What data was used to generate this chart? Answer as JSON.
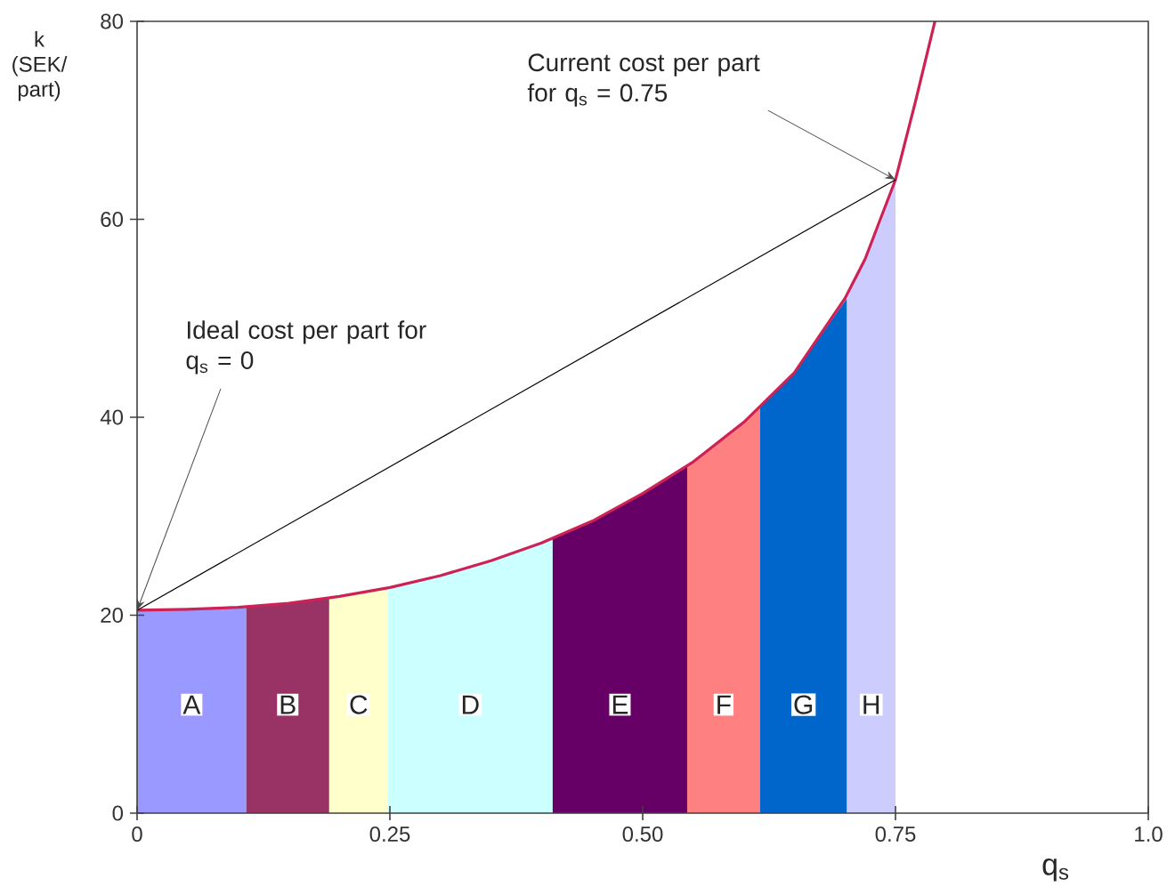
{
  "chart_data": {
    "type": "area",
    "xlabel": "q$_{s}$",
    "ylabel": "k (SEK/ part)",
    "xlim": [
      0,
      1.0
    ],
    "ylim": [
      0,
      80
    ],
    "xticks": [
      0,
      0.25,
      {
        "value": 0.5,
        "label": "0.50"
      },
      0.75,
      {
        "value": 1.0,
        "label": "1.0"
      }
    ],
    "yticks": [
      0,
      20,
      40,
      60,
      80
    ],
    "annotations": [
      {
        "text": "Ideal cost per part for q$_{s}$ = 0",
        "x": 0,
        "y": 20.5
      },
      {
        "text": "Current cost per part for q$_{s}$ = 0.75",
        "x": 0.75,
        "y": 64
      }
    ],
    "series": [
      {
        "name": "A",
        "color": "#9999ff",
        "x": [
          0,
          0.108
        ],
        "values": [
          20.5,
          20.8
        ]
      },
      {
        "name": "B",
        "color": "#993366",
        "x": [
          0.108,
          0.19
        ],
        "values": [
          20.8,
          21.7
        ]
      },
      {
        "name": "C",
        "color": "#ffffcc",
        "x": [
          0.19,
          0.248
        ],
        "values": [
          21.7,
          22.8
        ]
      },
      {
        "name": "D",
        "color": "#ccffff",
        "x": [
          0.248,
          0.3,
          0.35,
          0.411
        ],
        "values": [
          22.8,
          24,
          25.5,
          27.8
        ]
      },
      {
        "name": "E",
        "color": "#660066",
        "x": [
          0.411,
          0.45,
          0.5,
          0.544
        ],
        "values": [
          27.8,
          29.5,
          32.3,
          35
        ]
      },
      {
        "name": "F",
        "color": "#ff8080",
        "x": [
          0.544,
          0.58,
          0.616
        ],
        "values": [
          35,
          37.8,
          41
        ]
      },
      {
        "name": "G",
        "color": "#0066cc",
        "x": [
          0.616,
          0.65,
          0.68,
          0.702
        ],
        "values": [
          41,
          44.5,
          48.8,
          52
        ]
      },
      {
        "name": "H",
        "color": "#ccccff",
        "x": [
          0.702,
          0.72,
          0.735,
          0.75
        ],
        "values": [
          52,
          56,
          59.5,
          64
        ]
      },
      {
        "type": "line",
        "color": "#cc2255",
        "x": [
          0,
          0.05,
          0.1,
          0.15,
          0.2,
          0.25,
          0.3,
          0.35,
          0.4,
          0.45,
          0.5,
          0.55,
          0.6,
          0.65,
          0.7,
          0.72,
          0.75,
          0.77,
          0.789
        ],
        "values": [
          20.5,
          20.6,
          20.8,
          21.2,
          21.9,
          22.8,
          24,
          25.5,
          27.3,
          29.5,
          32.3,
          35.5,
          39.5,
          44.5,
          52,
          56,
          64,
          72,
          80
        ]
      },
      {
        "type": "line",
        "color": "#000000",
        "x": [
          0,
          0.75
        ],
        "values": [
          20.5,
          64
        ]
      }
    ]
  }
}
